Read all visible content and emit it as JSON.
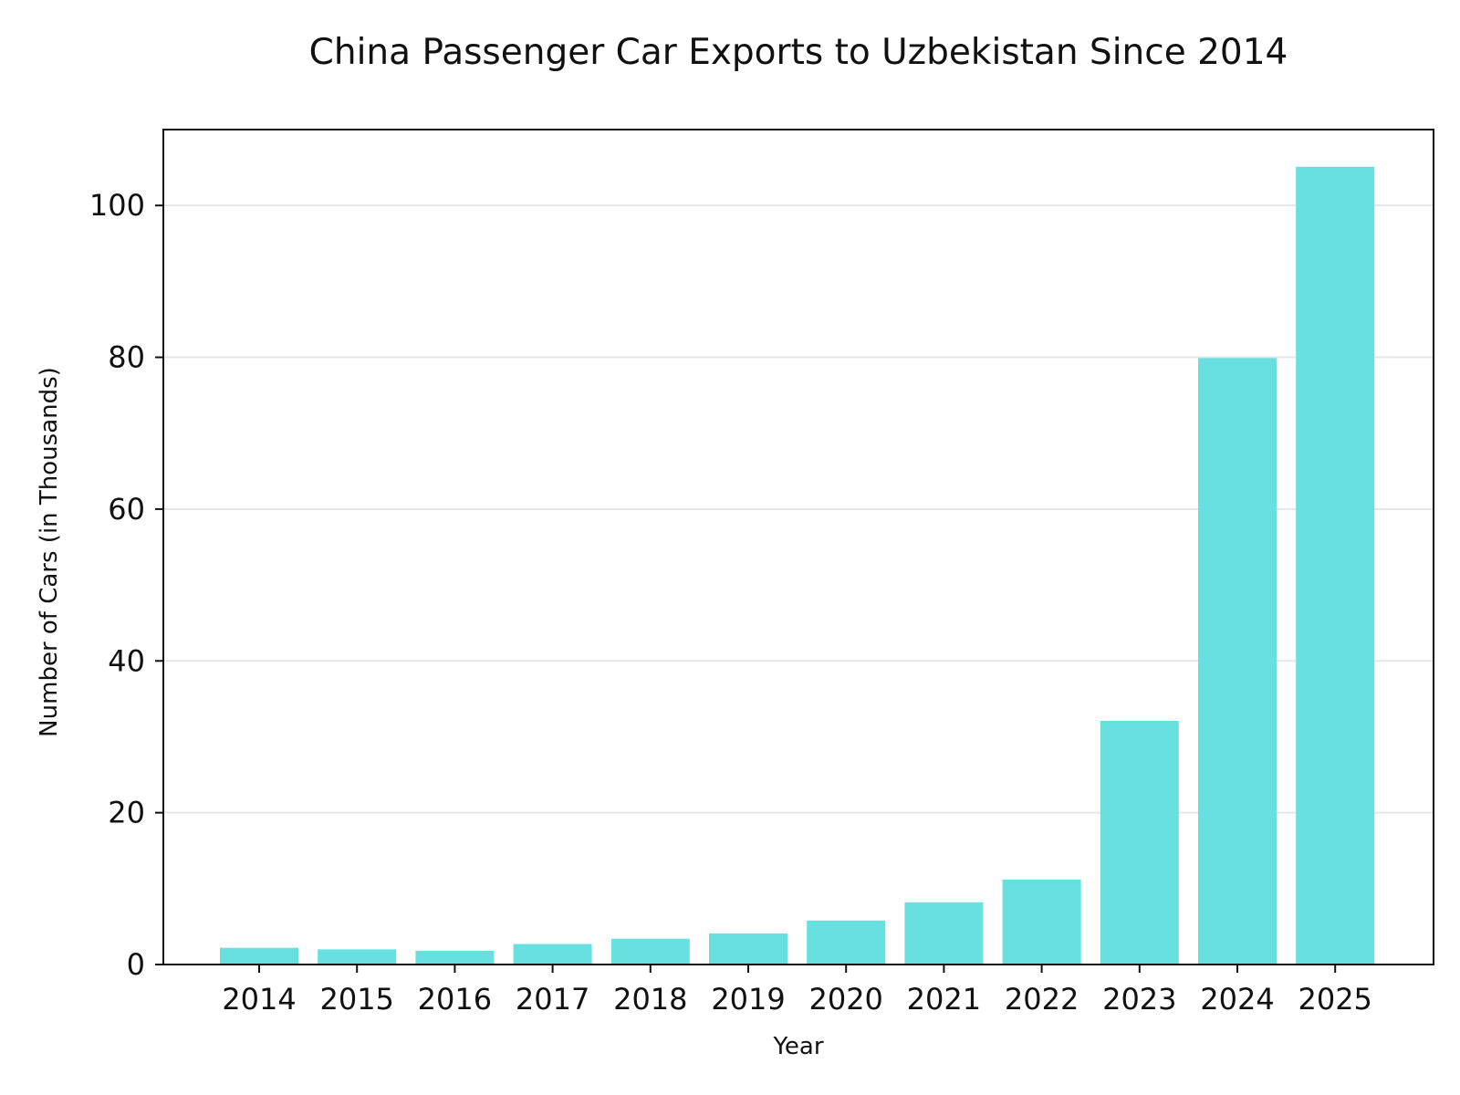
{
  "chart_data": {
    "type": "bar",
    "title": "China Passenger Car Exports to Uzbekistan Since 2014",
    "xlabel": "Year",
    "ylabel": "Number of Cars (in Thousands)",
    "categories": [
      "2014",
      "2015",
      "2016",
      "2017",
      "2018",
      "2019",
      "2020",
      "2021",
      "2022",
      "2023",
      "2024",
      "2025"
    ],
    "values": [
      2.2,
      2.0,
      1.8,
      2.7,
      3.4,
      4.1,
      5.8,
      8.2,
      11.2,
      32.1,
      79.9,
      105.1
    ],
    "ylim": [
      0,
      110
    ],
    "yticks": [
      0,
      20,
      40,
      60,
      80,
      100
    ],
    "grid": "horizontal",
    "bar_color": "#68e0e0"
  }
}
